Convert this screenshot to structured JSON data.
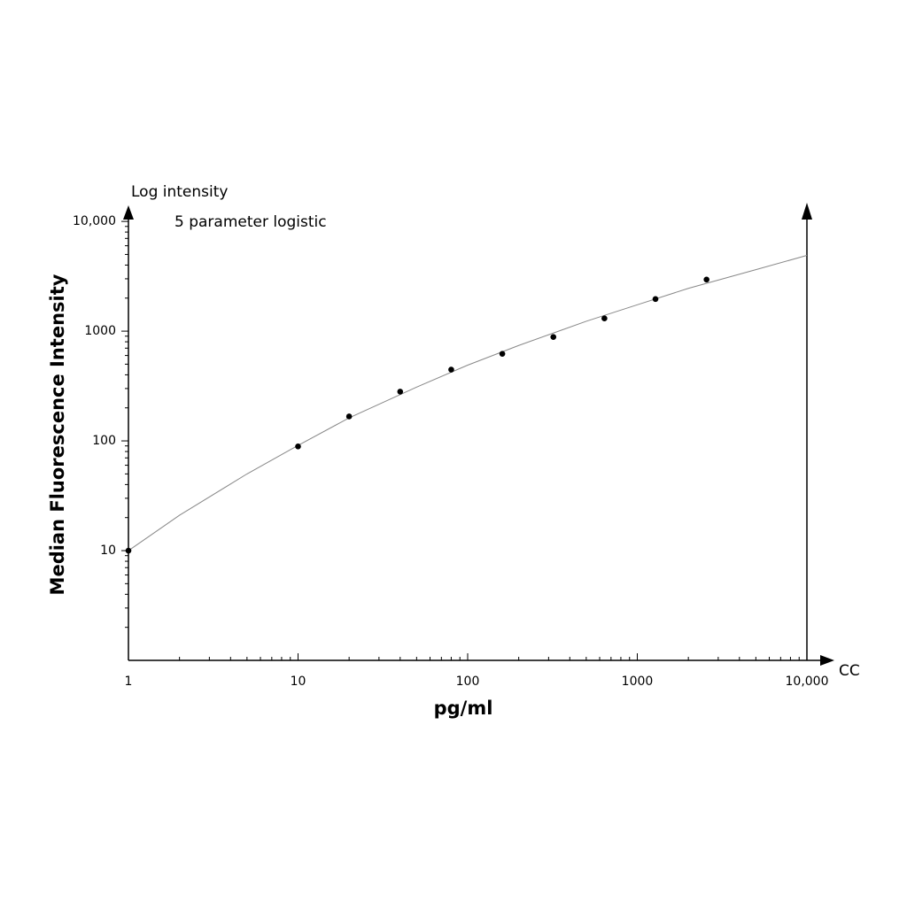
{
  "chart_data": {
    "type": "scatter",
    "y_axis_note": "Log intensity",
    "annotation": "5 parameter logistic",
    "ylabel": "Median Fluorescence Intensity",
    "xlabel": "pg/ml",
    "x_axis_note": "CC",
    "xlog": true,
    "ylog": true,
    "minor_ticks": true,
    "xlim": [
      1,
      10000
    ],
    "ylim": [
      1,
      14000
    ],
    "xticks": [
      1,
      10,
      100,
      1000,
      {
        "value": 10000,
        "label": "10,000"
      }
    ],
    "yticks": [
      10,
      100,
      1000,
      {
        "value": 10000,
        "label": "10,000"
      }
    ],
    "points": {
      "color": "#000000",
      "x": [
        1,
        10,
        20,
        40,
        80,
        160,
        320,
        640,
        1280,
        2560
      ],
      "values": [
        10,
        89,
        167,
        281,
        446,
        622,
        885,
        1306,
        1963,
        2951
      ]
    },
    "fit": {
      "color": "#888888",
      "x": [
        1,
        2,
        5,
        10,
        20,
        50,
        100,
        200,
        500,
        1000,
        2000,
        5000,
        10000
      ],
      "values": [
        10,
        21,
        50,
        91,
        162,
        309,
        490,
        741,
        1230,
        1738,
        2455,
        3631,
        4898
      ]
    }
  }
}
